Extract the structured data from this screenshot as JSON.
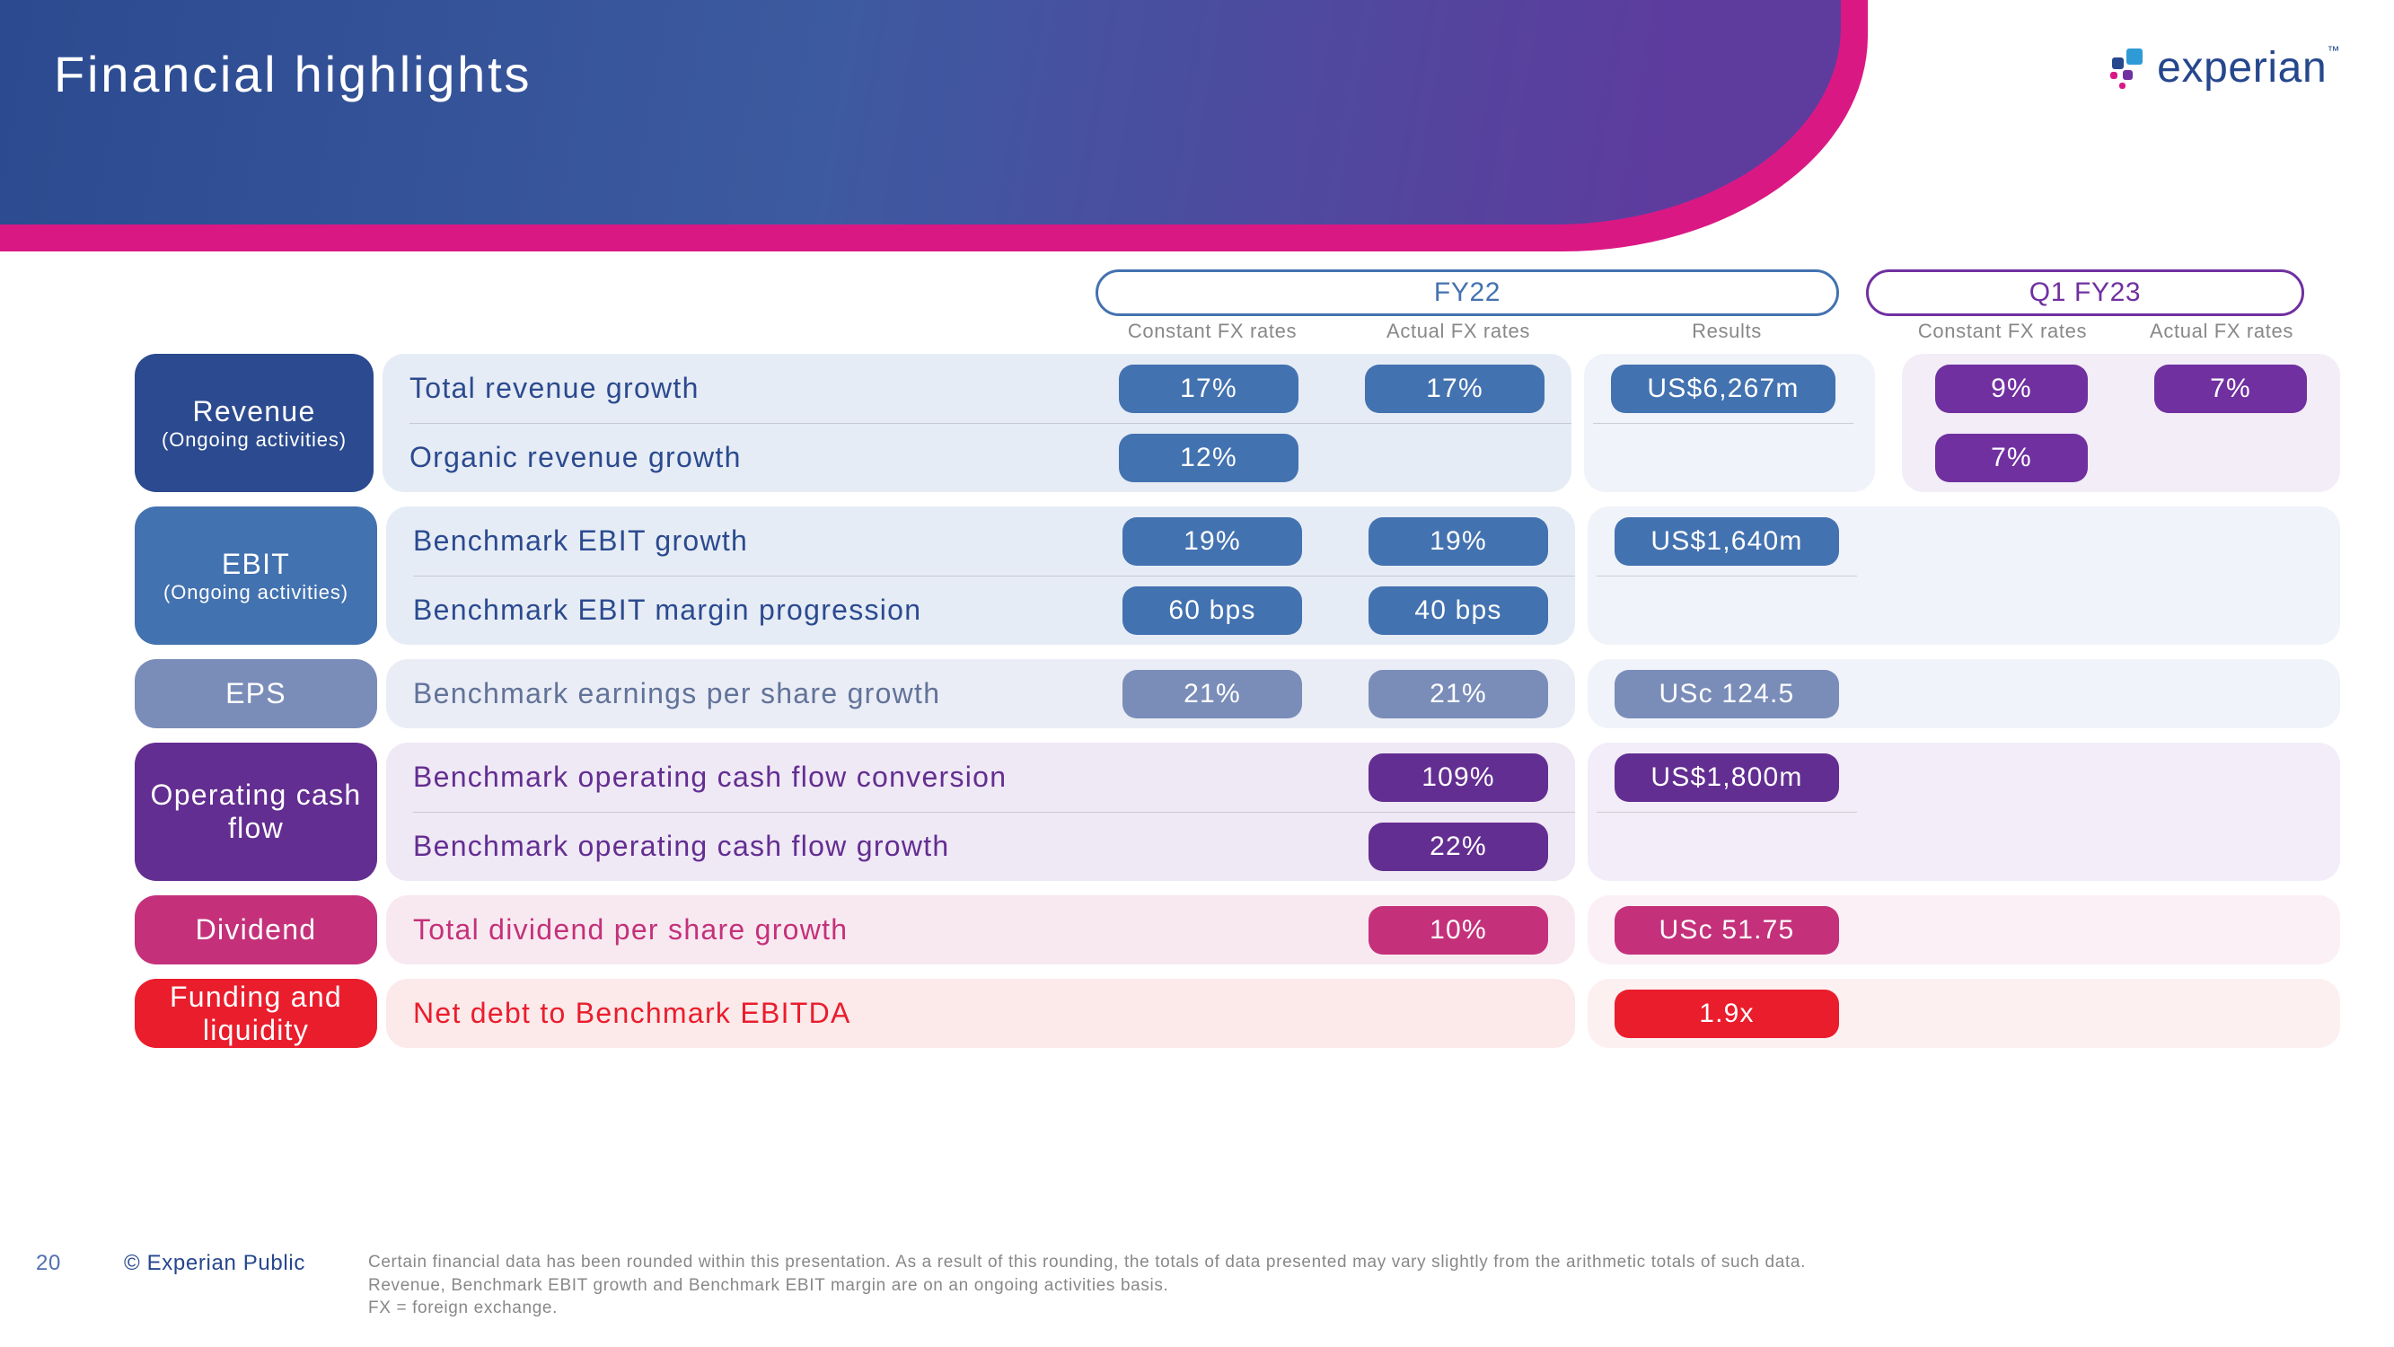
{
  "page_title": "Financial highlights",
  "logo_text": "experian",
  "logo_tm": "™",
  "logo_colors": {
    "blue": "#26478d",
    "magenta": "#da1884",
    "purple": "#7030a0",
    "cyan": "#2e9bd6"
  },
  "periods": {
    "fy22": "FY22",
    "q1": "Q1 FY23"
  },
  "column_headers": {
    "fy22_const": "Constant FX rates",
    "fy22_actual": "Actual FX rates",
    "fy22_results": "Results",
    "q1_const": "Constant FX rates",
    "q1_actual": "Actual FX rates"
  },
  "layout": {
    "col_widths": {
      "const": 260,
      "actual": 260,
      "results": 310,
      "q1_const": 244,
      "q1_actual": 244
    },
    "col_gap": 14
  },
  "categories": [
    {
      "id": "revenue",
      "title": "Revenue",
      "sub": "(Ongoing activities)",
      "bg": "#2b4a8f",
      "row_bg": "#e6ecf5",
      "label_color": "#2b4a8f",
      "pill_bg": "#4372b0",
      "pill_bg2": "#4372b0",
      "results_bg": "#f0f3f9",
      "q1_pill": "#7030a0",
      "q1_bg": "#f3edf7",
      "rows": [
        {
          "label": "Total revenue growth",
          "const": "17%",
          "actual": "17%",
          "results": "US$6,267m",
          "q1_const": "9%",
          "q1_actual": "7%"
        },
        {
          "label": "Organic revenue growth",
          "const": "12%",
          "actual": "",
          "results": "",
          "q1_const": "7%",
          "q1_actual": ""
        }
      ]
    },
    {
      "id": "ebit",
      "title": "EBIT",
      "sub": "(Ongoing activities)",
      "bg": "#4372b0",
      "row_bg": "#e6ecf5",
      "label_color": "#2b4a8f",
      "pill_bg": "#4372b0",
      "results_bg": "#f0f3f9",
      "rows": [
        {
          "label": "Benchmark EBIT growth",
          "const": "19%",
          "actual": "19%",
          "results": "US$1,640m"
        },
        {
          "label": "Benchmark EBIT margin progression",
          "const": "60 bps",
          "actual": "40 bps",
          "results": ""
        }
      ]
    },
    {
      "id": "eps",
      "title": "EPS",
      "sub": "",
      "bg": "#7a8db9",
      "row_bg": "#eaedf5",
      "label_color": "#627399",
      "pill_bg": "#7a8db9",
      "results_bg": "#f0f3f9",
      "rows": [
        {
          "label": "Benchmark earnings per share growth",
          "const": "21%",
          "actual": "21%",
          "results": "USc 124.5"
        }
      ]
    },
    {
      "id": "ocf",
      "title": "Operating cash flow",
      "sub": "",
      "bg": "#632e91",
      "row_bg": "#efe8f5",
      "label_color": "#632e91",
      "pill_bg": "#632e91",
      "results_bg": "#f3edf9",
      "rows": [
        {
          "label": "Benchmark operating cash flow conversion",
          "const": "",
          "actual": "109%",
          "results": "US$1,800m"
        },
        {
          "label": "Benchmark operating cash flow growth",
          "const": "",
          "actual": "22%",
          "results": ""
        }
      ]
    },
    {
      "id": "dividend",
      "title": "Dividend",
      "sub": "",
      "bg": "#c4317a",
      "row_bg": "#f8e9f1",
      "label_color": "#c4317a",
      "pill_bg": "#c4317a",
      "results_bg": "#fbf0f6",
      "rows": [
        {
          "label": "Total dividend per share growth",
          "const": "",
          "actual": "10%",
          "results": "USc 51.75"
        }
      ]
    },
    {
      "id": "funding",
      "title": "Funding and liquidity",
      "sub": "",
      "bg": "#ea1d2c",
      "row_bg": "#fce9ea",
      "label_color": "#ea1d2c",
      "pill_bg": "#ea1d2c",
      "results_bg": "#fdf0f1",
      "rows": [
        {
          "label": "Net debt to Benchmark EBITDA",
          "const": "",
          "actual": "",
          "results": "1.9x"
        }
      ]
    }
  ],
  "footer": {
    "page": "20",
    "copyright": "© Experian Public",
    "note": "Certain financial data has been rounded within this presentation. As a result of this rounding, the totals of data presented may vary slightly from the arithmetic totals of such data.\nRevenue, Benchmark EBIT growth and Benchmark EBIT margin are on an ongoing activities basis.\nFX = foreign exchange."
  }
}
